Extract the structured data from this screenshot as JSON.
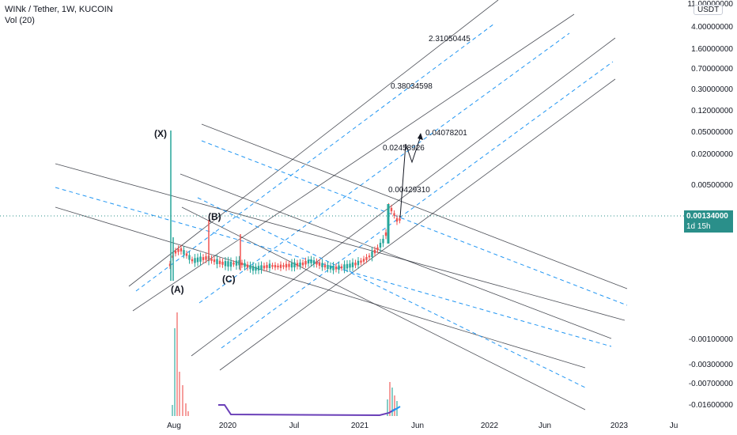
{
  "header": {
    "title": "WINk / Tether, 1W, KUCOIN",
    "volume_label": "Vol (20)"
  },
  "currency_button": "USDT",
  "current_price": {
    "label": "0.00134000",
    "countdown": "1d 15h",
    "color": "#2a8f8a"
  },
  "colors": {
    "up_candle": "#26a69a",
    "down_candle": "#ef5350",
    "fork_line": "#131722",
    "fork_dashed": "#2196f3",
    "volume_ma": "#6a3fb8",
    "volume_ma_end": "#2196f3"
  },
  "chart_data": {
    "type": "candlestick",
    "title": "WINk / Tether, 1W, KUCOIN",
    "y_scale": "log",
    "price_axis_labels": [
      "11.00000000",
      "4.00000000",
      "1.60000000",
      "0.70000000",
      "0.30000000",
      "0.12000000",
      "0.05000000",
      "0.02000000",
      "0.00500000",
      "-0.00100000",
      "-0.00300000",
      "-0.00700000",
      "-0.01600000"
    ],
    "time_axis_labels": [
      "Aug",
      "2020",
      "Jul",
      "2021",
      "Jun",
      "2022",
      "Jun",
      "2023",
      "Ju"
    ],
    "wave_labels": [
      "(X)",
      "(A)",
      "(B)",
      "(C)"
    ],
    "target_labels": [
      "2.31050445",
      "0.38034598",
      "0.04078201",
      "0.02458926",
      "0.00429310"
    ],
    "last_price": 0.00134,
    "indicators": [
      "Vol (20)"
    ],
    "drawings": [
      "pitchfork channels (solid)",
      "median channels (dashed)"
    ],
    "grid": false
  }
}
